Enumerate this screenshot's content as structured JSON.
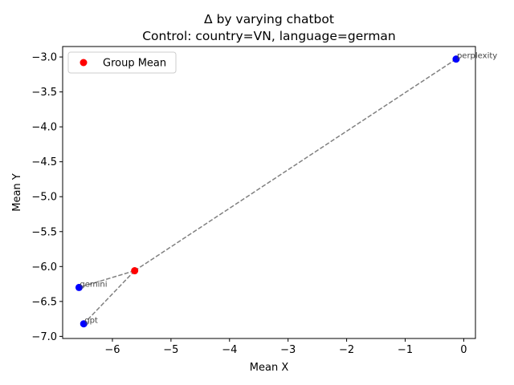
{
  "chart_data": {
    "type": "scatter",
    "title_line1": "Δ by varying chatbot",
    "title_line2": "Control: country=VN, language=german",
    "xlabel": "Mean X",
    "ylabel": "Mean Y",
    "xlim": [
      -6.85,
      0.2
    ],
    "ylim": [
      -7.03,
      -2.85
    ],
    "xticks": [
      -6,
      -5,
      -4,
      -3,
      -2,
      -1,
      0
    ],
    "xtick_labels": [
      "−6",
      "−5",
      "−4",
      "−3",
      "−2",
      "−1",
      "0"
    ],
    "yticks": [
      -3.0,
      -3.5,
      -4.0,
      -4.5,
      -5.0,
      -5.5,
      -6.0,
      -6.5,
      -7.0
    ],
    "ytick_labels": [
      "−3.0",
      "−3.5",
      "−4.0",
      "−4.5",
      "−5.0",
      "−5.5",
      "−6.0",
      "−6.5",
      "−7.0"
    ],
    "points": [
      {
        "label": "perplexity",
        "x": -0.13,
        "y": -3.03,
        "color": "#0000ff"
      },
      {
        "label": "gemini",
        "x": -6.57,
        "y": -6.3,
        "color": "#0000ff"
      },
      {
        "label": "gpt",
        "x": -6.49,
        "y": -6.82,
        "color": "#0000ff"
      }
    ],
    "group_mean": {
      "name": "Group Mean",
      "x": -5.62,
      "y": -6.06,
      "color": "#ff0000"
    },
    "connector_color": "#808080",
    "legend": {
      "placement": "upper-left",
      "entries": [
        "Group Mean"
      ]
    },
    "grid": false
  }
}
